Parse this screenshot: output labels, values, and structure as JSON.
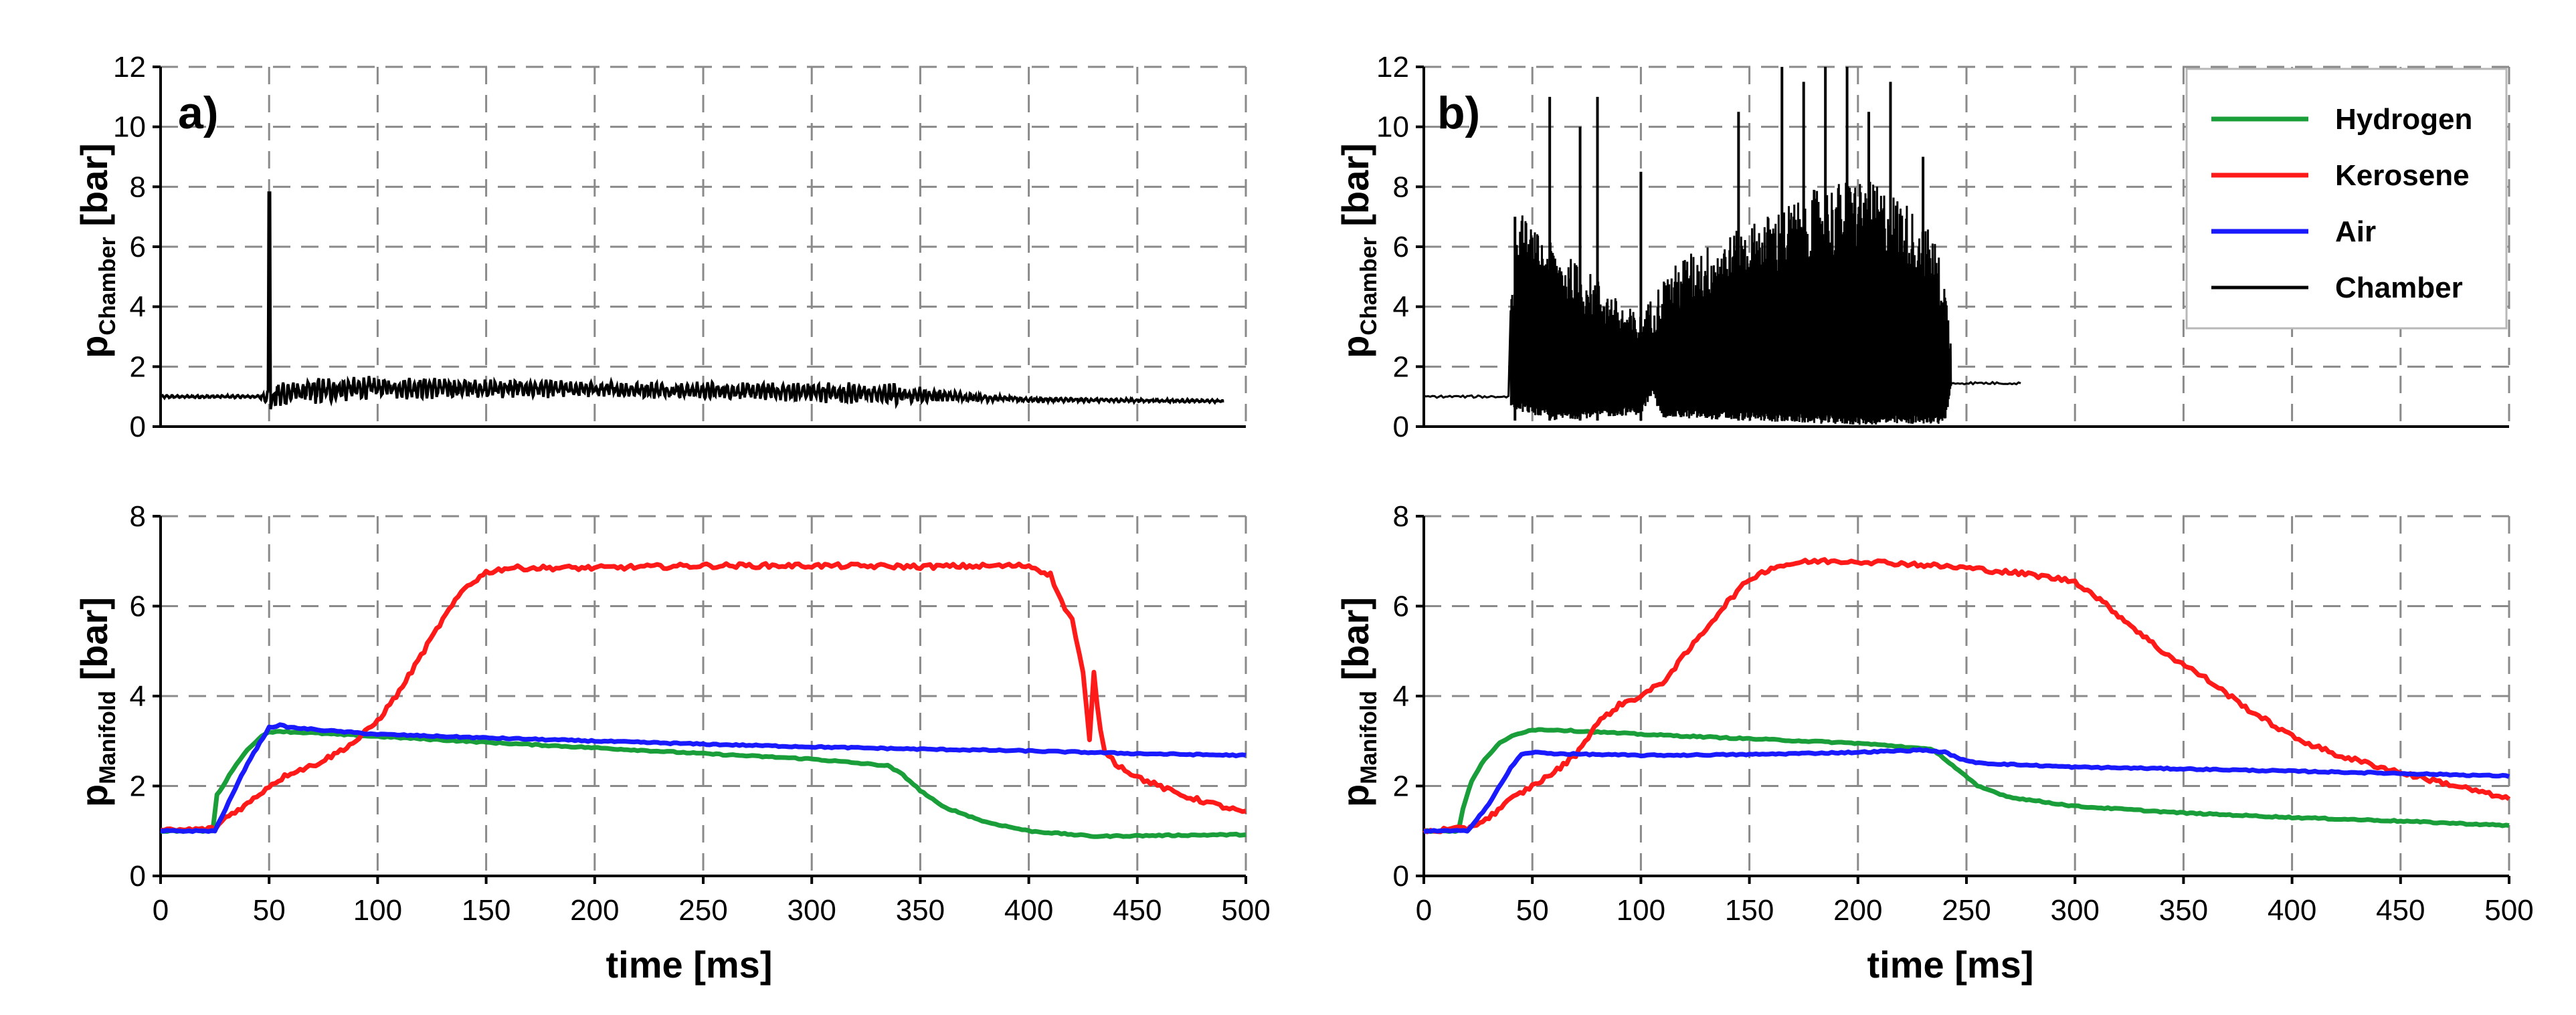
{
  "colors": {
    "hydrogen": "#1a9e3a",
    "kerosene": "#ff1a1a",
    "air": "#1a1aff",
    "chamber": "#000000",
    "grid": "#8a8a8a"
  },
  "legend": {
    "entries": [
      {
        "key": "hydrogen",
        "label": "Hydrogen"
      },
      {
        "key": "kerosene",
        "label": "Kerosene"
      },
      {
        "key": "air",
        "label": "Air"
      },
      {
        "key": "chamber",
        "label": "Chamber"
      }
    ]
  },
  "chart_data": [
    {
      "id": "a",
      "type": "line",
      "panel_label": "a)",
      "xlabel": "time [ms]",
      "xlim": [
        0,
        500
      ],
      "xticks": [
        0,
        50,
        100,
        150,
        200,
        250,
        300,
        350,
        400,
        450,
        500
      ],
      "grid": true,
      "top": {
        "ylabel_main": "p",
        "ylabel_sub": "Chamber",
        "ylabel_unit": " [bar]",
        "ylim": [
          0,
          12
        ],
        "yticks": [
          0,
          2,
          4,
          6,
          8,
          10,
          12
        ],
        "chamber": {
          "name": "Chamber",
          "base_level": 1.0,
          "spike_at_ms": 50,
          "spike_peak": 7.8,
          "end_ms": 490,
          "envelope": [
            [
              0,
              0.05
            ],
            [
              45,
              0.05
            ],
            [
              55,
              0.5
            ],
            [
              100,
              0.4
            ],
            [
              150,
              0.35
            ],
            [
              200,
              0.3
            ],
            [
              250,
              0.3
            ],
            [
              300,
              0.35
            ],
            [
              340,
              0.4
            ],
            [
              360,
              0.2
            ],
            [
              400,
              0.08
            ],
            [
              490,
              0.05
            ]
          ],
          "mean": [
            [
              0,
              1.0
            ],
            [
              50,
              1.0
            ],
            [
              60,
              1.15
            ],
            [
              100,
              1.3
            ],
            [
              200,
              1.25
            ],
            [
              300,
              1.15
            ],
            [
              350,
              1.05
            ],
            [
              400,
              0.9
            ],
            [
              490,
              0.85
            ]
          ]
        }
      },
      "bottom": {
        "ylabel_main": "p",
        "ylabel_sub": "Manifold",
        "ylabel_unit": " [bar]",
        "ylim": [
          0,
          8
        ],
        "yticks": [
          0,
          2,
          4,
          6,
          8
        ],
        "series": [
          {
            "key": "hydrogen",
            "x": [
              0,
              24,
              26,
              30,
              35,
              40,
              45,
              50,
              55,
              60,
              70,
              80,
              100,
              150,
              200,
              250,
              300,
              335,
              342,
              350,
              360,
              380,
              400,
              430,
              460,
              500
            ],
            "y": [
              1.0,
              1.0,
              1.8,
              2.1,
              2.5,
              2.8,
              3.05,
              3.2,
              3.22,
              3.2,
              3.18,
              3.15,
              3.1,
              2.97,
              2.85,
              2.72,
              2.6,
              2.45,
              2.25,
              1.9,
              1.55,
              1.2,
              1.0,
              0.88,
              0.9,
              0.92
            ]
          },
          {
            "key": "kerosene",
            "x": [
              0,
              25,
              30,
              40,
              50,
              60,
              70,
              80,
              90,
              100,
              110,
              120,
              130,
              140,
              150,
              160,
              200,
              250,
              300,
              350,
              400,
              410,
              415,
              420,
              425,
              428,
              430,
              433,
              435,
              440,
              450,
              470,
              500
            ],
            "y": [
              1.0,
              1.05,
              1.3,
              1.6,
              2.0,
              2.3,
              2.45,
              2.7,
              3.0,
              3.45,
              4.1,
              4.9,
              5.7,
              6.4,
              6.75,
              6.85,
              6.85,
              6.9,
              6.9,
              6.88,
              6.9,
              6.7,
              6.1,
              5.7,
              4.5,
              3.0,
              4.5,
              3.2,
              2.8,
              2.5,
              2.2,
              1.8,
              1.4
            ]
          },
          {
            "key": "air",
            "x": [
              0,
              25,
              30,
              40,
              50,
              55,
              60,
              80,
              100,
              150,
              200,
              250,
              300,
              350,
              400,
              450,
              500
            ],
            "y": [
              1.0,
              1.0,
              1.5,
              2.5,
              3.3,
              3.35,
              3.3,
              3.22,
              3.15,
              3.07,
              3.0,
              2.93,
              2.87,
              2.82,
              2.78,
              2.72,
              2.68
            ]
          }
        ]
      }
    },
    {
      "id": "b",
      "type": "line",
      "panel_label": "b)",
      "xlabel": "time [ms]",
      "xlim": [
        0,
        500
      ],
      "xticks": [
        0,
        50,
        100,
        150,
        200,
        250,
        300,
        350,
        400,
        450,
        500
      ],
      "grid": true,
      "top": {
        "ylabel_main": "p",
        "ylabel_sub": "Chamber",
        "ylabel_unit": " [bar]",
        "ylim": [
          0,
          12
        ],
        "yticks": [
          0,
          2,
          4,
          6,
          8,
          10,
          12
        ],
        "chamber": {
          "name": "Chamber",
          "base_level": 1.0,
          "osc_start_ms": 40,
          "osc_end_ms": 243,
          "tail_level": 1.45,
          "end_ms": 275,
          "upper_envelope": [
            [
              40,
              4.5
            ],
            [
              45,
              6.5
            ],
            [
              50,
              6.0
            ],
            [
              60,
              5.5
            ],
            [
              70,
              5.0
            ],
            [
              80,
              4.5
            ],
            [
              90,
              3.8
            ],
            [
              100,
              3.4
            ],
            [
              110,
              4.5
            ],
            [
              120,
              5.2
            ],
            [
              140,
              5.8
            ],
            [
              160,
              6.5
            ],
            [
              180,
              7.2
            ],
            [
              200,
              7.6
            ],
            [
              220,
              7.0
            ],
            [
              235,
              5.8
            ],
            [
              240,
              4.5
            ],
            [
              243,
              2.5
            ]
          ],
          "lower_envelope": [
            [
              40,
              0.6
            ],
            [
              60,
              0.2
            ],
            [
              100,
              0.4
            ],
            [
              105,
              1.0
            ],
            [
              110,
              0.3
            ],
            [
              200,
              0.05
            ],
            [
              240,
              0.1
            ],
            [
              243,
              1.2
            ]
          ],
          "spikes": [
            [
              42,
              7.0
            ],
            [
              58,
              11.0
            ],
            [
              72,
              10.0
            ],
            [
              80,
              11.0
            ],
            [
              100,
              8.5
            ],
            [
              145,
              10.5
            ],
            [
              165,
              12.0
            ],
            [
              175,
              11.5
            ],
            [
              185,
              12.0
            ],
            [
              195,
              12.0
            ],
            [
              205,
              10.5
            ],
            [
              215,
              11.5
            ],
            [
              230,
              9.0
            ]
          ]
        }
      },
      "bottom": {
        "ylabel_main": "p",
        "ylabel_sub": "Manifold",
        "ylabel_unit": " [bar]",
        "ylim": [
          0,
          8
        ],
        "yticks": [
          0,
          2,
          4,
          6,
          8
        ],
        "series": [
          {
            "key": "hydrogen",
            "x": [
              0,
              16,
              18,
              22,
              28,
              35,
              42,
              50,
              60,
              80,
              100,
              150,
              200,
              220,
              235,
              245,
              255,
              270,
              300,
              350,
              400,
              450,
              500
            ],
            "y": [
              1.0,
              1.0,
              1.5,
              2.1,
              2.6,
              2.95,
              3.15,
              3.25,
              3.25,
              3.2,
              3.15,
              3.05,
              2.95,
              2.88,
              2.8,
              2.4,
              2.0,
              1.75,
              1.55,
              1.4,
              1.3,
              1.22,
              1.12
            ]
          },
          {
            "key": "kerosene",
            "x": [
              0,
              20,
              30,
              40,
              50,
              60,
              70,
              80,
              90,
              100,
              110,
              120,
              130,
              140,
              150,
              160,
              170,
              180,
              200,
              220,
              250,
              280,
              300,
              310,
              320,
              330,
              340,
              360,
              380,
              400,
              420,
              450,
              480,
              500
            ],
            "y": [
              1.0,
              1.05,
              1.3,
              1.7,
              2.0,
              2.3,
              2.7,
              3.4,
              3.8,
              4.0,
              4.3,
              4.9,
              5.5,
              6.1,
              6.6,
              6.85,
              6.95,
              7.0,
              7.0,
              6.95,
              6.85,
              6.7,
              6.55,
              6.2,
              5.8,
              5.4,
              5.0,
              4.4,
              3.7,
              3.1,
              2.7,
              2.3,
              1.95,
              1.7
            ]
          },
          {
            "key": "air",
            "x": [
              0,
              20,
              30,
              40,
              45,
              50,
              60,
              100,
              150,
              200,
              230,
              240,
              250,
              260,
              300,
              350,
              400,
              450,
              500
            ],
            "y": [
              1.0,
              1.0,
              1.6,
              2.4,
              2.7,
              2.75,
              2.72,
              2.68,
              2.7,
              2.75,
              2.8,
              2.75,
              2.55,
              2.5,
              2.42,
              2.38,
              2.33,
              2.28,
              2.22
            ]
          }
        ]
      }
    }
  ]
}
